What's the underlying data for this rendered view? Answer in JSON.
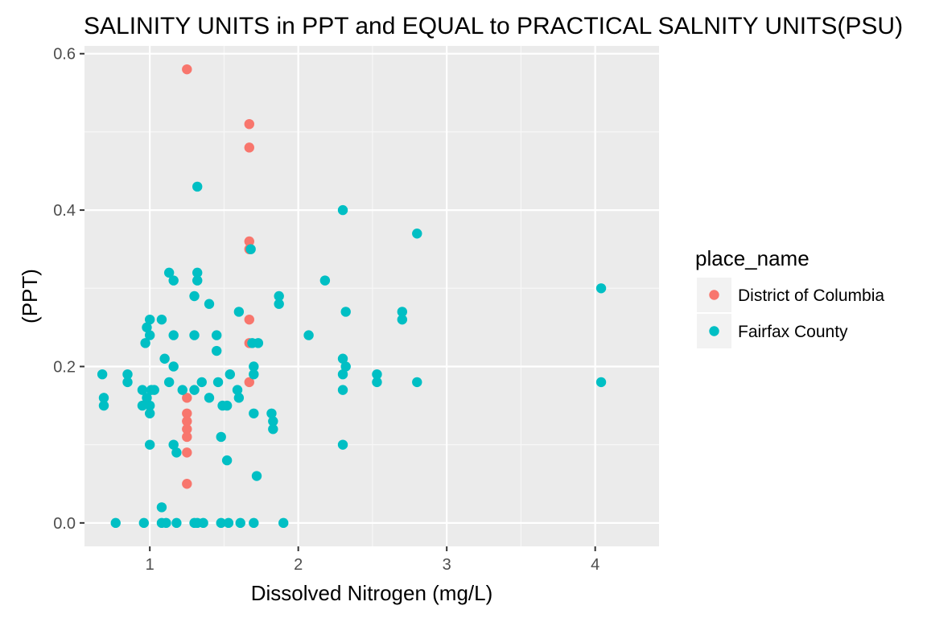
{
  "chart_data": {
    "type": "scatter",
    "title": "SALINITY UNITS in PPT and EQUAL to PRACTICAL SALNITY UNITS(PSU)",
    "xlabel": "Dissolved Nitrogen (mg/L)",
    "ylabel": "(PPT)",
    "xlim": [
      0.56,
      4.43
    ],
    "ylim": [
      -0.03,
      0.61
    ],
    "x_ticks": [
      1,
      2,
      3,
      4
    ],
    "y_ticks": [
      0.0,
      0.2,
      0.4,
      0.6
    ],
    "x_tick_labels": [
      "1",
      "2",
      "3",
      "4"
    ],
    "y_tick_labels": [
      "0.0",
      "0.2",
      "0.4",
      "0.6"
    ],
    "grid": true,
    "panel_background": "#ebebeb",
    "legend": {
      "title": "place_name",
      "position": "right",
      "entries": [
        "District of Columbia",
        "Fairfax County"
      ]
    },
    "series": [
      {
        "name": "District of Columbia",
        "color": "#F8766D",
        "points": [
          [
            1.25,
            0.58
          ],
          [
            1.67,
            0.51
          ],
          [
            1.67,
            0.48
          ],
          [
            1.67,
            0.36
          ],
          [
            1.67,
            0.35
          ],
          [
            1.67,
            0.26
          ],
          [
            1.67,
            0.23
          ],
          [
            1.67,
            0.18
          ],
          [
            1.25,
            0.16
          ],
          [
            1.25,
            0.14
          ],
          [
            1.25,
            0.13
          ],
          [
            1.25,
            0.12
          ],
          [
            1.25,
            0.11
          ],
          [
            1.25,
            0.09
          ],
          [
            1.25,
            0.05
          ]
        ]
      },
      {
        "name": "Fairfax County",
        "color": "#00BFC4",
        "points": [
          [
            0.68,
            0.19
          ],
          [
            0.69,
            0.16
          ],
          [
            0.69,
            0.15
          ],
          [
            0.77,
            0.0
          ],
          [
            0.85,
            0.19
          ],
          [
            0.85,
            0.18
          ],
          [
            0.95,
            0.17
          ],
          [
            0.95,
            0.15
          ],
          [
            0.96,
            0.0
          ],
          [
            0.97,
            0.23
          ],
          [
            0.98,
            0.25
          ],
          [
            0.98,
            0.16
          ],
          [
            1.0,
            0.26
          ],
          [
            1.0,
            0.24
          ],
          [
            1.0,
            0.15
          ],
          [
            1.0,
            0.14
          ],
          [
            1.0,
            0.1
          ],
          [
            1.01,
            0.17
          ],
          [
            1.03,
            0.17
          ],
          [
            1.08,
            0.26
          ],
          [
            1.08,
            0.02
          ],
          [
            1.08,
            0.0
          ],
          [
            1.1,
            0.21
          ],
          [
            1.11,
            0.0
          ],
          [
            1.13,
            0.32
          ],
          [
            1.13,
            0.18
          ],
          [
            1.16,
            0.31
          ],
          [
            1.16,
            0.24
          ],
          [
            1.16,
            0.2
          ],
          [
            1.16,
            0.1
          ],
          [
            1.18,
            0.09
          ],
          [
            1.18,
            0.0
          ],
          [
            1.22,
            0.17
          ],
          [
            1.3,
            0.29
          ],
          [
            1.3,
            0.24
          ],
          [
            1.3,
            0.17
          ],
          [
            1.3,
            0.0
          ],
          [
            1.32,
            0.43
          ],
          [
            1.32,
            0.32
          ],
          [
            1.32,
            0.31
          ],
          [
            1.32,
            0.0
          ],
          [
            1.35,
            0.18
          ],
          [
            1.36,
            0.0
          ],
          [
            1.4,
            0.28
          ],
          [
            1.4,
            0.16
          ],
          [
            1.45,
            0.24
          ],
          [
            1.45,
            0.22
          ],
          [
            1.46,
            0.18
          ],
          [
            1.48,
            0.11
          ],
          [
            1.48,
            0.0
          ],
          [
            1.49,
            0.15
          ],
          [
            1.52,
            0.15
          ],
          [
            1.52,
            0.08
          ],
          [
            1.53,
            0.0
          ],
          [
            1.54,
            0.19
          ],
          [
            1.59,
            0.17
          ],
          [
            1.6,
            0.27
          ],
          [
            1.6,
            0.16
          ],
          [
            1.61,
            0.0
          ],
          [
            1.68,
            0.35
          ],
          [
            1.69,
            0.23
          ],
          [
            1.7,
            0.2
          ],
          [
            1.7,
            0.19
          ],
          [
            1.7,
            0.14
          ],
          [
            1.7,
            0.0
          ],
          [
            1.72,
            0.06
          ],
          [
            1.73,
            0.23
          ],
          [
            1.82,
            0.14
          ],
          [
            1.83,
            0.13
          ],
          [
            1.83,
            0.12
          ],
          [
            1.87,
            0.29
          ],
          [
            1.87,
            0.28
          ],
          [
            1.9,
            0.0
          ],
          [
            2.07,
            0.24
          ],
          [
            2.18,
            0.31
          ],
          [
            2.3,
            0.4
          ],
          [
            2.3,
            0.21
          ],
          [
            2.3,
            0.19
          ],
          [
            2.3,
            0.17
          ],
          [
            2.3,
            0.1
          ],
          [
            2.32,
            0.27
          ],
          [
            2.32,
            0.2
          ],
          [
            2.53,
            0.19
          ],
          [
            2.53,
            0.18
          ],
          [
            2.7,
            0.27
          ],
          [
            2.7,
            0.26
          ],
          [
            2.8,
            0.37
          ],
          [
            2.8,
            0.18
          ],
          [
            4.04,
            0.3
          ],
          [
            4.04,
            0.18
          ]
        ]
      }
    ]
  }
}
